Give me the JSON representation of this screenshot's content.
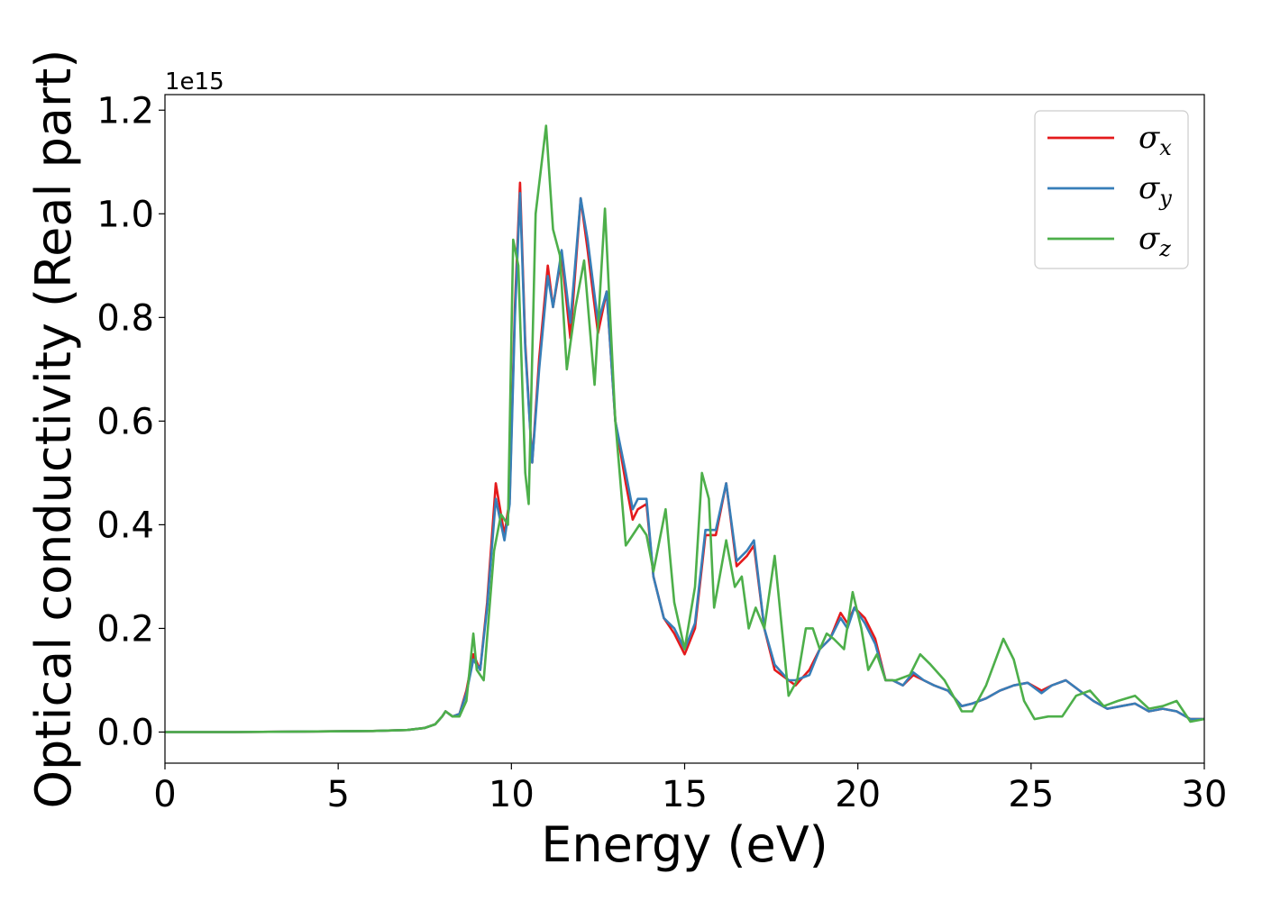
{
  "chart_data": {
    "type": "line",
    "title": "",
    "xlabel": "Energy (eV)",
    "ylabel": "Optical conductivity (Real part)",
    "y_offset_text": "1e15",
    "y_multiplier": 1000000000000000.0,
    "xlim": [
      0,
      30
    ],
    "ylim": [
      -0.06,
      1.23
    ],
    "xticks": [
      0,
      5,
      10,
      15,
      20,
      25,
      30
    ],
    "xtick_labels": [
      "0",
      "5",
      "10",
      "15",
      "20",
      "25",
      "30"
    ],
    "yticks": [
      0.0,
      0.2,
      0.4,
      0.6,
      0.8,
      1.0,
      1.2
    ],
    "ytick_labels": [
      "0.0",
      "0.2",
      "0.4",
      "0.6",
      "0.8",
      "1.0",
      "1.2"
    ],
    "grid": false,
    "legend_position": "top-right",
    "series": [
      {
        "name": "σx",
        "label_main": "σ",
        "label_sub": "x",
        "color": "#e41a1c",
        "x": [
          0,
          2,
          4,
          6,
          7,
          7.5,
          7.8,
          8.0,
          8.1,
          8.3,
          8.5,
          8.7,
          8.9,
          9.1,
          9.3,
          9.55,
          9.8,
          9.95,
          10.1,
          10.25,
          10.4,
          10.6,
          10.8,
          11.05,
          11.2,
          11.45,
          11.7,
          12.0,
          12.2,
          12.5,
          12.75,
          13.0,
          13.3,
          13.5,
          13.65,
          13.9,
          14.1,
          14.4,
          14.7,
          15.0,
          15.3,
          15.6,
          15.9,
          16.2,
          16.5,
          16.8,
          17.0,
          17.3,
          17.6,
          18.0,
          18.2,
          18.6,
          18.9,
          19.2,
          19.5,
          19.7,
          19.9,
          20.2,
          20.5,
          20.8,
          21.0,
          21.3,
          21.6,
          21.9,
          22.2,
          22.6,
          23.0,
          23.3,
          23.7,
          24.1,
          24.5,
          24.9,
          25.3,
          25.6,
          26.0,
          26.4,
          26.8,
          27.2,
          27.6,
          28.0,
          28.4,
          28.8,
          29.2,
          29.6,
          30
        ],
        "y": [
          0,
          0,
          0.001,
          0.002,
          0.004,
          0.008,
          0.015,
          0.03,
          0.04,
          0.03,
          0.035,
          0.08,
          0.15,
          0.12,
          0.25,
          0.48,
          0.38,
          0.45,
          0.82,
          1.06,
          0.75,
          0.52,
          0.72,
          0.9,
          0.82,
          0.92,
          0.76,
          1.03,
          0.93,
          0.77,
          0.85,
          0.6,
          0.48,
          0.41,
          0.43,
          0.44,
          0.3,
          0.22,
          0.19,
          0.15,
          0.2,
          0.38,
          0.38,
          0.48,
          0.32,
          0.34,
          0.36,
          0.2,
          0.12,
          0.1,
          0.09,
          0.12,
          0.16,
          0.18,
          0.23,
          0.21,
          0.24,
          0.22,
          0.18,
          0.1,
          0.1,
          0.09,
          0.11,
          0.1,
          0.09,
          0.08,
          0.05,
          0.055,
          0.065,
          0.08,
          0.09,
          0.095,
          0.08,
          0.09,
          0.1,
          0.08,
          0.06,
          0.045,
          0.05,
          0.055,
          0.04,
          0.045,
          0.04,
          0.025,
          0.025
        ]
      },
      {
        "name": "σy",
        "label_main": "σ",
        "label_sub": "y",
        "color": "#377eb8",
        "x": [
          0,
          2,
          4,
          6,
          7,
          7.5,
          7.8,
          8.0,
          8.1,
          8.3,
          8.5,
          8.7,
          8.9,
          9.1,
          9.3,
          9.55,
          9.8,
          9.95,
          10.1,
          10.25,
          10.4,
          10.6,
          10.8,
          11.05,
          11.2,
          11.45,
          11.7,
          12.0,
          12.2,
          12.5,
          12.75,
          13.0,
          13.3,
          13.5,
          13.65,
          13.9,
          14.1,
          14.4,
          14.7,
          15.0,
          15.3,
          15.6,
          15.9,
          16.2,
          16.5,
          16.8,
          17.0,
          17.3,
          17.6,
          18.0,
          18.2,
          18.6,
          18.9,
          19.2,
          19.5,
          19.7,
          19.9,
          20.2,
          20.5,
          20.8,
          21.0,
          21.3,
          21.6,
          21.9,
          22.2,
          22.6,
          23.0,
          23.3,
          23.7,
          24.1,
          24.5,
          24.9,
          25.3,
          25.6,
          26.0,
          26.4,
          26.8,
          27.2,
          27.6,
          28.0,
          28.4,
          28.8,
          29.2,
          29.6,
          30
        ],
        "y": [
          0,
          0,
          0.001,
          0.002,
          0.004,
          0.008,
          0.015,
          0.03,
          0.04,
          0.03,
          0.035,
          0.075,
          0.14,
          0.12,
          0.24,
          0.45,
          0.37,
          0.44,
          0.8,
          1.04,
          0.74,
          0.52,
          0.7,
          0.88,
          0.82,
          0.93,
          0.79,
          1.03,
          0.95,
          0.79,
          0.85,
          0.6,
          0.5,
          0.43,
          0.45,
          0.45,
          0.3,
          0.22,
          0.2,
          0.16,
          0.21,
          0.39,
          0.39,
          0.48,
          0.33,
          0.35,
          0.37,
          0.2,
          0.13,
          0.1,
          0.1,
          0.11,
          0.16,
          0.18,
          0.22,
          0.2,
          0.24,
          0.21,
          0.17,
          0.1,
          0.1,
          0.09,
          0.115,
          0.1,
          0.09,
          0.08,
          0.05,
          0.055,
          0.065,
          0.08,
          0.09,
          0.095,
          0.075,
          0.09,
          0.1,
          0.08,
          0.06,
          0.045,
          0.05,
          0.055,
          0.04,
          0.045,
          0.04,
          0.025,
          0.025
        ]
      },
      {
        "name": "σz",
        "label_main": "σ",
        "label_sub": "z",
        "color": "#4daf4a",
        "x": [
          0,
          2,
          4,
          6,
          7,
          7.5,
          7.8,
          8.0,
          8.1,
          8.3,
          8.5,
          8.7,
          8.9,
          9.0,
          9.2,
          9.5,
          9.7,
          9.9,
          10.05,
          10.2,
          10.4,
          10.5,
          10.7,
          11.0,
          11.2,
          11.4,
          11.6,
          11.85,
          12.1,
          12.4,
          12.7,
          13.0,
          13.3,
          13.5,
          13.7,
          13.9,
          14.1,
          14.45,
          14.7,
          15.0,
          15.3,
          15.5,
          15.7,
          15.85,
          16.2,
          16.45,
          16.65,
          16.85,
          17.05,
          17.3,
          17.6,
          18.0,
          18.25,
          18.5,
          18.7,
          18.9,
          19.1,
          19.3,
          19.6,
          19.85,
          20.1,
          20.3,
          20.55,
          20.8,
          21.1,
          21.5,
          21.8,
          22.1,
          22.5,
          23.0,
          23.3,
          23.7,
          24.2,
          24.5,
          24.8,
          25.1,
          25.5,
          25.9,
          26.3,
          26.7,
          27.1,
          27.5,
          28.0,
          28.4,
          28.8,
          29.2,
          29.6,
          30
        ],
        "y": [
          0,
          0,
          0.001,
          0.002,
          0.004,
          0.008,
          0.015,
          0.03,
          0.04,
          0.03,
          0.03,
          0.06,
          0.19,
          0.12,
          0.1,
          0.35,
          0.42,
          0.4,
          0.95,
          0.9,
          0.5,
          0.44,
          1.0,
          1.17,
          0.97,
          0.92,
          0.7,
          0.82,
          0.91,
          0.67,
          1.01,
          0.6,
          0.36,
          0.38,
          0.4,
          0.38,
          0.31,
          0.43,
          0.25,
          0.16,
          0.28,
          0.5,
          0.45,
          0.24,
          0.37,
          0.28,
          0.3,
          0.2,
          0.24,
          0.2,
          0.34,
          0.07,
          0.1,
          0.2,
          0.2,
          0.16,
          0.19,
          0.18,
          0.16,
          0.27,
          0.2,
          0.12,
          0.15,
          0.1,
          0.1,
          0.11,
          0.15,
          0.13,
          0.1,
          0.04,
          0.04,
          0.09,
          0.18,
          0.14,
          0.06,
          0.025,
          0.03,
          0.03,
          0.07,
          0.08,
          0.05,
          0.06,
          0.07,
          0.045,
          0.05,
          0.06,
          0.02,
          0.025
        ]
      }
    ]
  }
}
